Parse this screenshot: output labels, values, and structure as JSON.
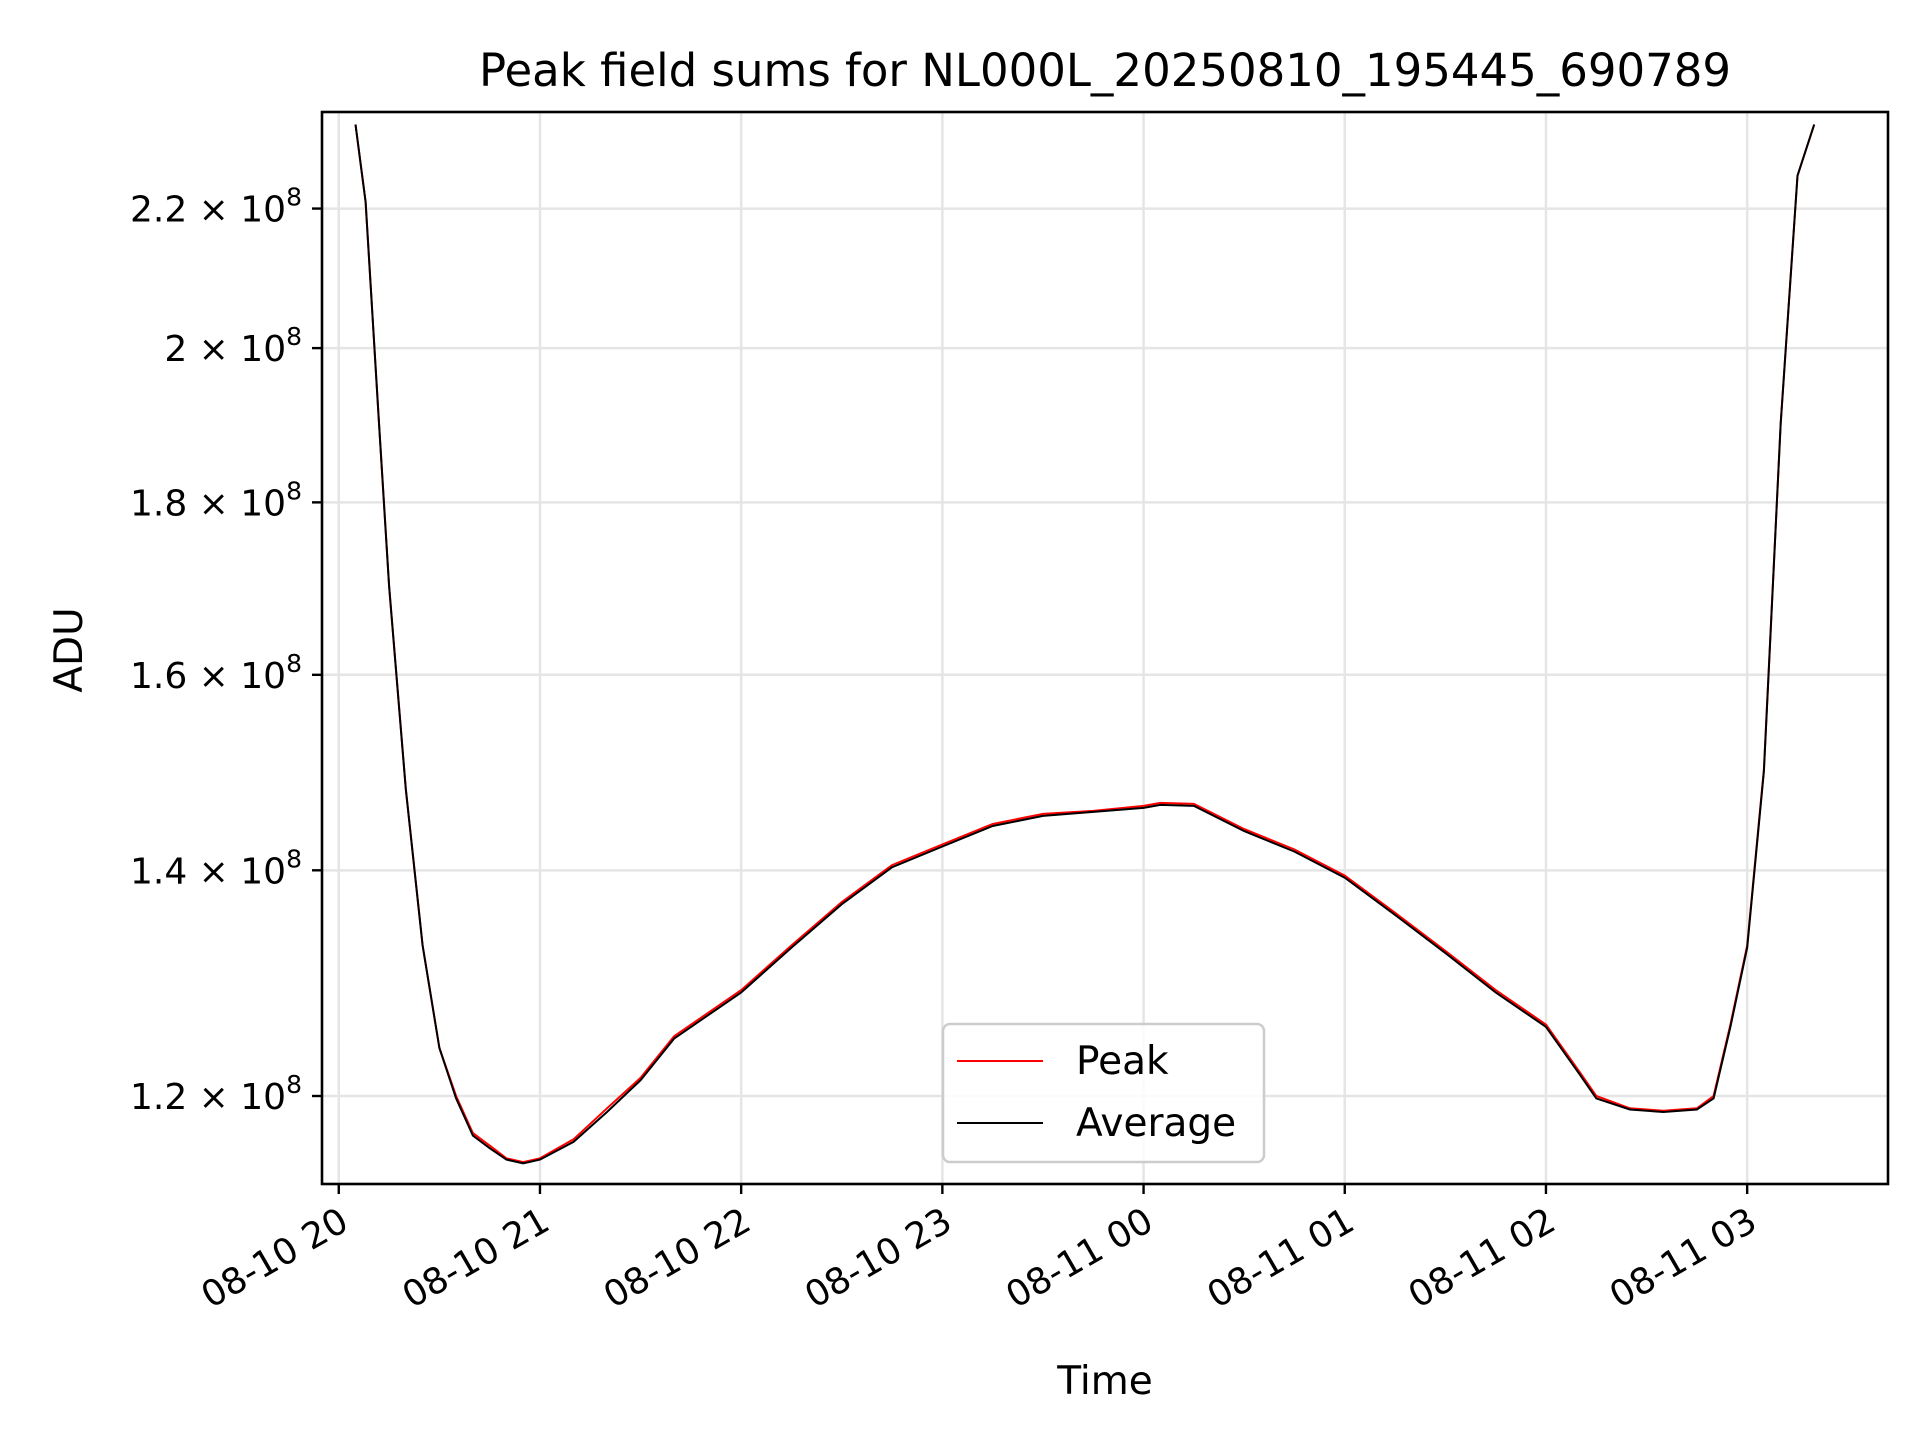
{
  "chart_data": {
    "type": "line",
    "title": "Peak field sums for NL000L_20250810_195445_690789",
    "xlabel": "Time",
    "ylabel": "ADU",
    "yscale": "log",
    "ylim": [
      113000000,
      235000000
    ],
    "xlim": [
      "2025-08-10 19:55",
      "2025-08-11 03:42"
    ],
    "grid": true,
    "legend_position": "lower center",
    "x_ticks": [
      "2025-08-10 20:00",
      "2025-08-10 21:00",
      "2025-08-10 22:00",
      "2025-08-10 23:00",
      "2025-08-11 00:00",
      "2025-08-11 01:00",
      "2025-08-11 02:00",
      "2025-08-11 03:00"
    ],
    "x_tick_labels": [
      "08-10 20",
      "08-10 21",
      "08-10 22",
      "08-10 23",
      "08-11 00",
      "08-11 01",
      "08-11 02",
      "08-11 03"
    ],
    "y_ticks": [
      {
        "value": 120000000,
        "mantissa": "1.2",
        "base": "10",
        "exp": "8"
      },
      {
        "value": 140000000,
        "mantissa": "1.4",
        "base": "10",
        "exp": "8"
      },
      {
        "value": 160000000,
        "mantissa": "1.6",
        "base": "10",
        "exp": "8"
      },
      {
        "value": 180000000,
        "mantissa": "1.8",
        "base": "10",
        "exp": "8"
      },
      {
        "value": 200000000,
        "mantissa": "2",
        "base": "10",
        "exp": "8"
      },
      {
        "value": 220000000,
        "mantissa": "2.2",
        "base": "10",
        "exp": "8"
      }
    ],
    "series": [
      {
        "name": "Peak",
        "color": "#ff0000",
        "x": [
          "2025-08-10 20:05",
          "2025-08-10 20:08",
          "2025-08-10 20:12",
          "2025-08-10 20:15",
          "2025-08-10 20:20",
          "2025-08-10 20:25",
          "2025-08-10 20:30",
          "2025-08-10 20:35",
          "2025-08-10 20:40",
          "2025-08-10 20:45",
          "2025-08-10 20:50",
          "2025-08-10 20:55",
          "2025-08-10 21:00",
          "2025-08-10 21:10",
          "2025-08-10 21:20",
          "2025-08-10 21:30",
          "2025-08-10 21:40",
          "2025-08-10 22:00",
          "2025-08-10 22:15",
          "2025-08-10 22:30",
          "2025-08-10 22:45",
          "2025-08-10 23:00",
          "2025-08-10 23:15",
          "2025-08-10 23:30",
          "2025-08-10 23:45",
          "2025-08-11 00:00",
          "2025-08-11 00:05",
          "2025-08-11 00:15",
          "2025-08-11 00:30",
          "2025-08-11 00:45",
          "2025-08-11 01:00",
          "2025-08-11 01:15",
          "2025-08-11 01:30",
          "2025-08-11 01:45",
          "2025-08-11 02:00",
          "2025-08-11 02:10",
          "2025-08-11 02:15",
          "2025-08-11 02:25",
          "2025-08-11 02:35",
          "2025-08-11 02:45",
          "2025-08-11 02:50",
          "2025-08-11 02:55",
          "2025-08-11 03:00",
          "2025-08-11 03:05",
          "2025-08-11 03:10",
          "2025-08-11 03:15",
          "2025-08-11 03:20"
        ],
        "values": [
          233000000,
          221000000,
          190000000,
          170000000,
          148000000,
          133000000,
          124000000,
          120000000,
          117000000,
          116000000,
          115000000,
          114700000,
          115000000,
          116500000,
          119000000,
          121500000,
          125000000,
          129000000,
          133000000,
          137000000,
          140500000,
          142500000,
          144500000,
          145500000,
          145800000,
          146300000,
          146600000,
          146500000,
          144000000,
          142000000,
          139500000,
          136000000,
          132500000,
          129000000,
          126000000,
          122000000,
          120000000,
          119000000,
          118800000,
          119000000,
          120000000,
          126000000,
          133000000,
          150000000,
          190000000,
          225000000,
          233000000
        ]
      },
      {
        "name": "Average",
        "color": "#000000",
        "x": [
          "2025-08-10 20:05",
          "2025-08-10 20:08",
          "2025-08-10 20:12",
          "2025-08-10 20:15",
          "2025-08-10 20:20",
          "2025-08-10 20:25",
          "2025-08-10 20:30",
          "2025-08-10 20:35",
          "2025-08-10 20:40",
          "2025-08-10 20:45",
          "2025-08-10 20:50",
          "2025-08-10 20:55",
          "2025-08-10 21:00",
          "2025-08-10 21:10",
          "2025-08-10 21:20",
          "2025-08-10 21:30",
          "2025-08-10 21:40",
          "2025-08-10 22:00",
          "2025-08-10 22:15",
          "2025-08-10 22:30",
          "2025-08-10 22:45",
          "2025-08-10 23:00",
          "2025-08-10 23:15",
          "2025-08-10 23:30",
          "2025-08-10 23:45",
          "2025-08-11 00:00",
          "2025-08-11 00:05",
          "2025-08-11 00:15",
          "2025-08-11 00:30",
          "2025-08-11 00:45",
          "2025-08-11 01:00",
          "2025-08-11 01:15",
          "2025-08-11 01:30",
          "2025-08-11 01:45",
          "2025-08-11 02:00",
          "2025-08-11 02:10",
          "2025-08-11 02:15",
          "2025-08-11 02:25",
          "2025-08-11 02:35",
          "2025-08-11 02:45",
          "2025-08-11 02:50",
          "2025-08-11 02:55",
          "2025-08-11 03:00",
          "2025-08-11 03:05",
          "2025-08-11 03:10",
          "2025-08-11 03:15",
          "2025-08-11 03:20"
        ],
        "values": [
          233000000,
          221000000,
          190000000,
          170000000,
          148000000,
          133000000,
          124000000,
          119800000,
          116800000,
          115800000,
          114900000,
          114600000,
          114900000,
          116300000,
          118700000,
          121300000,
          124800000,
          128800000,
          132800000,
          136800000,
          140300000,
          142300000,
          144300000,
          145300000,
          145700000,
          146100000,
          146400000,
          146300000,
          143800000,
          141800000,
          139300000,
          135800000,
          132300000,
          128800000,
          125800000,
          121800000,
          119800000,
          118900000,
          118700000,
          118900000,
          119800000,
          125800000,
          132800000,
          149800000,
          190000000,
          225000000,
          233000000
        ]
      }
    ]
  }
}
